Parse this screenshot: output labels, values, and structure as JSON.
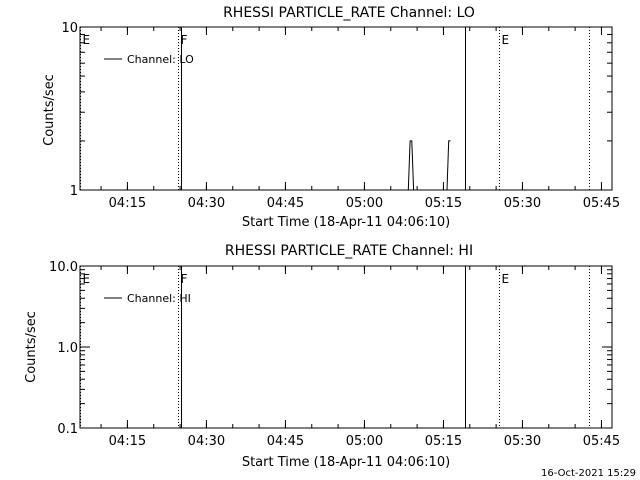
{
  "chart_data": [
    {
      "type": "line",
      "title": "RHESSI PARTICLE_RATE Channel: LO",
      "xlabel": "Start Time (18-Apr-11 04:06:10)",
      "ylabel": "Counts/sec",
      "xlim": [
        "04:06",
        "05:47"
      ],
      "ylim": [
        1,
        10
      ],
      "yscale": "log",
      "x_ticks": [
        "04:15",
        "04:30",
        "04:45",
        "05:00",
        "05:15",
        "05:30",
        "05:45"
      ],
      "y_ticks": [
        "1",
        "10"
      ],
      "legend": {
        "placement": "top-left",
        "entries": [
          "Channel: LO"
        ]
      },
      "series": [
        {
          "name": "Channel: LO",
          "x": [
            "05:08:20",
            "05:08:40",
            "05:09:00",
            "05:09:20",
            "05:15:40",
            "05:16:00",
            "05:16:20"
          ],
          "y": [
            1,
            2,
            2,
            1,
            1,
            2,
            2
          ]
        }
      ],
      "event_lines": [
        {
          "label": "E",
          "time": "04:06",
          "style": "dotted"
        },
        {
          "label": "F",
          "time": "04:24:40",
          "style": "dotted"
        },
        {
          "label": "",
          "time": "04:25:10",
          "style": "solid"
        },
        {
          "label": "",
          "time": "05:19:00",
          "style": "solid"
        },
        {
          "label": "E",
          "time": "05:25:30",
          "style": "dotted"
        },
        {
          "label": "",
          "time": "05:42:40",
          "style": "dotted"
        }
      ]
    },
    {
      "type": "line",
      "title": "RHESSI PARTICLE_RATE Channel: HI",
      "xlabel": "Start Time (18-Apr-11 04:06:10)",
      "ylabel": "Counts/sec",
      "xlim": [
        "04:06",
        "05:47"
      ],
      "ylim": [
        0.1,
        10
      ],
      "yscale": "log",
      "x_ticks": [
        "04:15",
        "04:30",
        "04:45",
        "05:00",
        "05:15",
        "05:30",
        "05:45"
      ],
      "y_ticks": [
        "0.1",
        "1.0",
        "10.0"
      ],
      "legend": {
        "placement": "top-left",
        "entries": [
          "Channel: HI"
        ]
      },
      "series": [
        {
          "name": "Channel: HI",
          "x": [],
          "y": []
        }
      ],
      "event_lines": [
        {
          "label": "E",
          "time": "04:06",
          "style": "dotted"
        },
        {
          "label": "F",
          "time": "04:24:40",
          "style": "dotted"
        },
        {
          "label": "",
          "time": "04:25:10",
          "style": "solid"
        },
        {
          "label": "",
          "time": "05:19:00",
          "style": "solid"
        },
        {
          "label": "E",
          "time": "05:25:30",
          "style": "dotted"
        },
        {
          "label": "",
          "time": "05:42:40",
          "style": "dotted"
        }
      ]
    }
  ],
  "footer_timestamp": "16-Oct-2021 15:29"
}
